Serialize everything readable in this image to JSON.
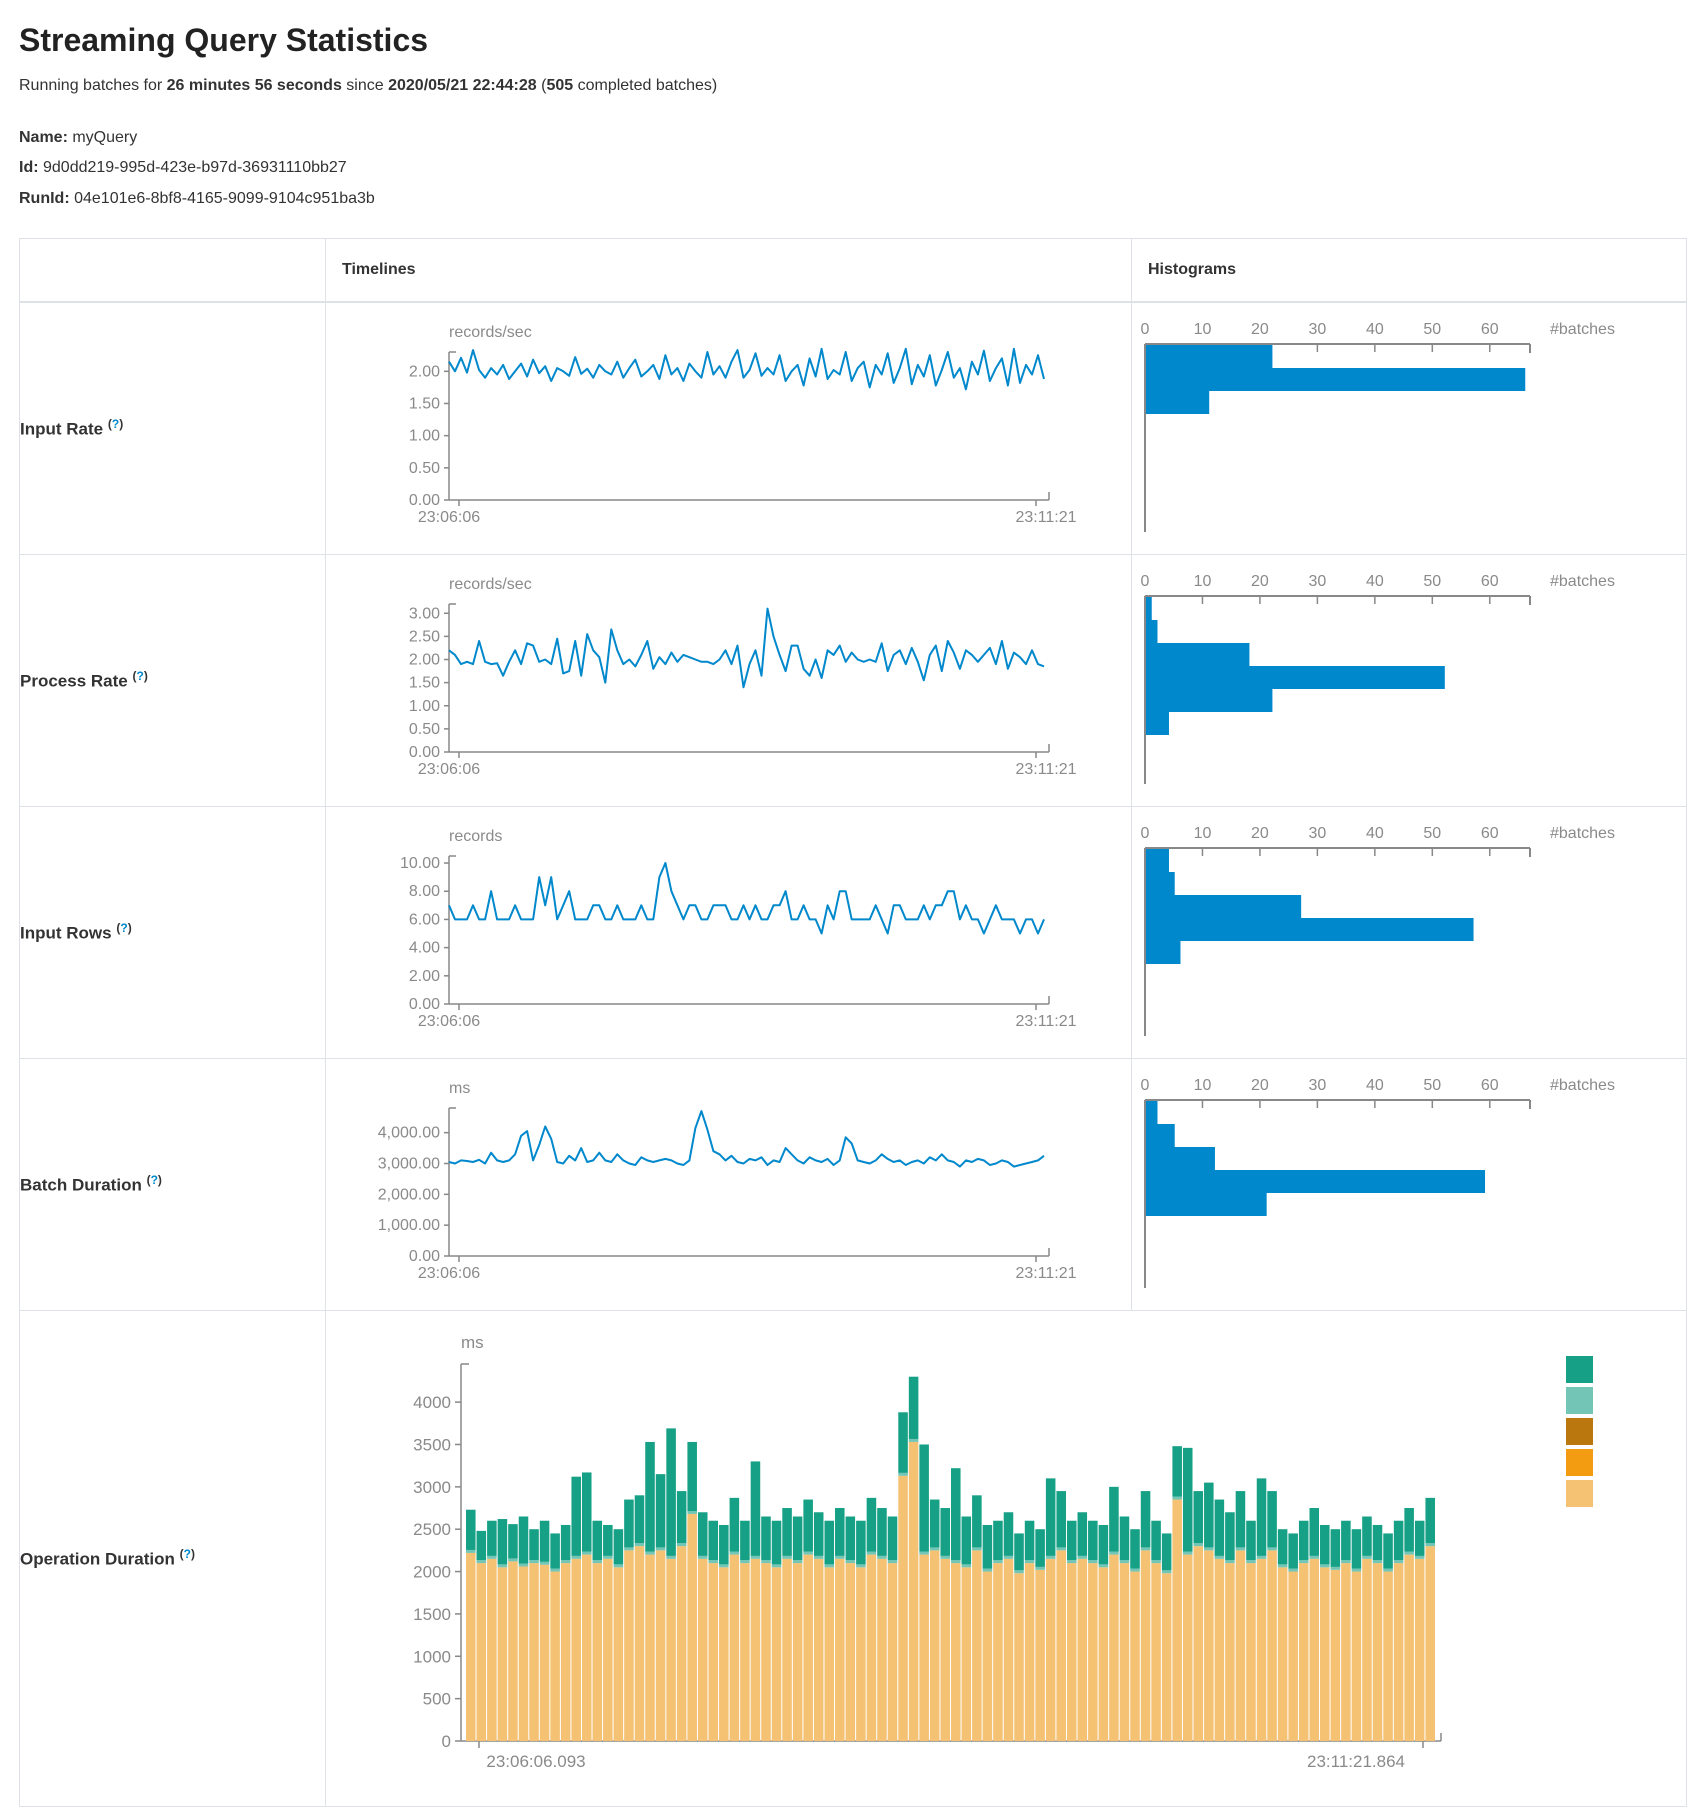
{
  "page": {
    "title": "Streaming Query Statistics",
    "subtitle": {
      "p1": "Running batches for ",
      "b1": "26 minutes 56 seconds",
      "p2": " since ",
      "b2": "2020/05/21 22:44:28",
      "p3": " (",
      "b3": "505",
      "p4": " completed batches)"
    },
    "meta": [
      {
        "label": "Name:",
        "value": " myQuery"
      },
      {
        "label": "Id:",
        "value": " 9d0dd219-995d-423e-b97d-36931110bb27"
      },
      {
        "label": "RunId:",
        "value": " 04e101e6-8bf8-4165-9099-9104c951ba3b"
      }
    ]
  },
  "table": {
    "timelines_header": "Timelines",
    "histograms_header": "Histograms"
  },
  "help_marker": {
    "open": "(",
    "q": "?",
    "close": ")"
  },
  "colors": {
    "line": "#0088cc",
    "histogram_bar": "#0088cc",
    "axis": "#888888",
    "axis_text": "#8a8a8a",
    "legend_green": "#16A085",
    "legend_light_teal": "#73C6B6",
    "legend_dark_orange": "#B9770E",
    "legend_orange": "#F39C12",
    "legend_light_orange": "#F5C274"
  },
  "chart_data": [
    {
      "row": "Input Rate",
      "type": "line",
      "unit": "records/sec",
      "x_start": "23:06:06",
      "x_end": "23:11:21",
      "yticks": [
        "2.00",
        "1.50",
        "1.00",
        "0.50",
        "0.00"
      ],
      "ymax": 2.3,
      "values": [
        2.15,
        2.0,
        2.21,
        1.98,
        2.33,
        2.02,
        1.9,
        2.05,
        1.95,
        2.1,
        1.88,
        2.0,
        2.12,
        1.92,
        2.18,
        1.97,
        2.08,
        1.85,
        2.05,
        2.0,
        1.93,
        2.22,
        1.96,
        2.04,
        1.9,
        2.1,
        2.0,
        1.95,
        2.15,
        1.9,
        2.05,
        2.18,
        1.92,
        2.0,
        2.1,
        1.88,
        2.25,
        1.95,
        2.05,
        1.85,
        2.12,
        2.0,
        1.9,
        2.3,
        1.95,
        2.08,
        1.9,
        2.15,
        2.33,
        1.9,
        2.02,
        2.28,
        1.93,
        2.05,
        1.95,
        2.25,
        1.85,
        2.0,
        2.1,
        1.78,
        2.2,
        1.92,
        2.35,
        1.88,
        2.02,
        1.95,
        2.3,
        1.85,
        2.05,
        2.15,
        1.75,
        2.1,
        1.95,
        2.28,
        1.82,
        2.05,
        2.35,
        1.8,
        2.1,
        1.92,
        2.25,
        1.78,
        2.02,
        2.3,
        1.9,
        2.05,
        1.72,
        2.15,
        1.95,
        2.32,
        1.85,
        2.05,
        2.2,
        1.78,
        2.35,
        1.82,
        2.1,
        1.95,
        2.25,
        1.88
      ]
    },
    {
      "row": "Input Rate",
      "type": "bar",
      "orientation": "horizontal",
      "xlabel": "#batches",
      "xticks": [
        "0",
        "10",
        "20",
        "30",
        "40",
        "50",
        "60"
      ],
      "xmax": 67,
      "bins": [
        22,
        66,
        11
      ]
    },
    {
      "row": "Process Rate",
      "type": "line",
      "unit": "records/sec",
      "x_start": "23:06:06",
      "x_end": "23:11:21",
      "yticks": [
        "3.00",
        "2.50",
        "2.00",
        "1.50",
        "1.00",
        "0.50",
        "0.00"
      ],
      "ymax": 3.2,
      "values": [
        2.2,
        2.1,
        1.9,
        1.95,
        1.9,
        2.4,
        1.95,
        1.9,
        1.92,
        1.65,
        1.95,
        2.2,
        1.9,
        2.35,
        2.3,
        1.95,
        2.0,
        1.9,
        2.45,
        1.7,
        1.75,
        2.4,
        1.65,
        2.55,
        2.2,
        2.05,
        1.5,
        2.65,
        2.2,
        1.9,
        2.0,
        1.85,
        2.1,
        2.4,
        1.8,
        2.05,
        1.9,
        2.15,
        1.95,
        2.1,
        2.05,
        2.0,
        1.95,
        1.95,
        1.9,
        2.0,
        2.2,
        1.9,
        2.3,
        1.4,
        1.9,
        2.2,
        1.65,
        3.1,
        2.5,
        2.1,
        1.75,
        2.3,
        2.3,
        1.8,
        1.65,
        2.0,
        1.6,
        2.2,
        2.1,
        2.3,
        1.95,
        2.15,
        2.0,
        1.95,
        2.0,
        1.95,
        2.35,
        1.75,
        2.1,
        2.2,
        1.9,
        2.25,
        1.95,
        1.55,
        2.1,
        2.3,
        1.75,
        2.4,
        2.15,
        1.8,
        2.2,
        2.1,
        1.95,
        2.1,
        2.25,
        1.9,
        2.4,
        1.8,
        2.15,
        2.05,
        1.9,
        2.2,
        1.9,
        1.85
      ]
    },
    {
      "row": "Process Rate",
      "type": "bar",
      "orientation": "horizontal",
      "xlabel": "#batches",
      "xticks": [
        "0",
        "10",
        "20",
        "30",
        "40",
        "50",
        "60"
      ],
      "xmax": 67,
      "bins": [
        1,
        2,
        18,
        52,
        22,
        4
      ]
    },
    {
      "row": "Input Rows",
      "type": "line",
      "unit": "records",
      "x_start": "23:06:06",
      "x_end": "23:11:21",
      "yticks": [
        "10.00",
        "8.00",
        "6.00",
        "4.00",
        "2.00",
        "0.00"
      ],
      "ymax": 10.5,
      "values": [
        7,
        6,
        6,
        6,
        7,
        6,
        6,
        8,
        6,
        6,
        6,
        7,
        6,
        6,
        6,
        9,
        7,
        9,
        6,
        7,
        8,
        6,
        6,
        6,
        7,
        7,
        6,
        6,
        7,
        6,
        6,
        6,
        7,
        6,
        6,
        9,
        10,
        8,
        7,
        6,
        7,
        7,
        6,
        6,
        7,
        7,
        7,
        6,
        6,
        7,
        6,
        7,
        6,
        6,
        7,
        7,
        8,
        6,
        6,
        7,
        6,
        6,
        5,
        7,
        6,
        8,
        8,
        6,
        6,
        6,
        6,
        7,
        6,
        5,
        7,
        7,
        6,
        6,
        6,
        7,
        6,
        7,
        7,
        8,
        8,
        6,
        7,
        6,
        6,
        5,
        6,
        7,
        6,
        6,
        6,
        5,
        6,
        6,
        5,
        6
      ]
    },
    {
      "row": "Input Rows",
      "type": "bar",
      "orientation": "horizontal",
      "xlabel": "#batches",
      "xticks": [
        "0",
        "10",
        "20",
        "30",
        "40",
        "50",
        "60"
      ],
      "xmax": 67,
      "bins": [
        4,
        5,
        27,
        57,
        6
      ]
    },
    {
      "row": "Batch Duration",
      "type": "line",
      "unit": "ms",
      "x_start": "23:06:06",
      "x_end": "23:11:21",
      "yticks": [
        "4,000.00",
        "3,000.00",
        "2,000.00",
        "1,000.00",
        "0.00"
      ],
      "ymax": 4800,
      "values": [
        3050,
        3000,
        3100,
        3080,
        3050,
        3120,
        3000,
        3350,
        3100,
        3050,
        3100,
        3300,
        3900,
        4050,
        3100,
        3600,
        4200,
        3800,
        3050,
        3000,
        3250,
        3100,
        3500,
        3050,
        3100,
        3350,
        3100,
        3050,
        3300,
        3100,
        3000,
        2950,
        3200,
        3100,
        3050,
        3100,
        3150,
        3100,
        3000,
        2950,
        3100,
        4150,
        4700,
        4100,
        3400,
        3300,
        3100,
        3250,
        3050,
        3000,
        3150,
        3100,
        3200,
        2950,
        3100,
        3050,
        3500,
        3300,
        3100,
        3000,
        3200,
        3100,
        3050,
        3150,
        2950,
        3100,
        3850,
        3650,
        3100,
        3050,
        3000,
        3100,
        3300,
        3150,
        3050,
        3100,
        2950,
        3050,
        3100,
        3000,
        3200,
        3100,
        3300,
        3100,
        3050,
        2900,
        3100,
        3050,
        3150,
        3100,
        2950,
        3000,
        3100,
        3050,
        2900,
        2950,
        3000,
        3050,
        3100,
        3250
      ]
    },
    {
      "row": "Batch Duration",
      "type": "bar",
      "orientation": "horizontal",
      "xlabel": "#batches",
      "xticks": [
        "0",
        "10",
        "20",
        "30",
        "40",
        "50",
        "60"
      ],
      "xmax": 67,
      "bins": [
        2,
        5,
        12,
        59,
        21
      ]
    },
    {
      "row": "Operation Duration",
      "type": "stacked-bar",
      "unit": "ms",
      "x_start": "23:06:06.093",
      "x_end": "23:11:21.864",
      "yticks": [
        "4000",
        "3500",
        "3000",
        "2500",
        "2000",
        "1500",
        "1000",
        "500",
        "0"
      ],
      "ymax": 4450,
      "sliver_value": 35,
      "stack_colors": [
        "#F5C274",
        "#73C6B6",
        "#16A085"
      ],
      "legend_colors": [
        "#16A085",
        "#73C6B6",
        "#B9770E",
        "#F39C12",
        "#F5C274"
      ],
      "bars_base_total": [
        [
          2220,
          2730
        ],
        [
          2100,
          2480
        ],
        [
          2150,
          2600
        ],
        [
          2050,
          2620
        ],
        [
          2120,
          2560
        ],
        [
          2060,
          2650
        ],
        [
          2100,
          2500
        ],
        [
          2080,
          2600
        ],
        [
          2000,
          2450
        ],
        [
          2100,
          2550
        ],
        [
          2150,
          3120
        ],
        [
          2200,
          3170
        ],
        [
          2100,
          2600
        ],
        [
          2150,
          2550
        ],
        [
          2050,
          2500
        ],
        [
          2250,
          2850
        ],
        [
          2300,
          2900
        ],
        [
          2200,
          3530
        ],
        [
          2250,
          3150
        ],
        [
          2150,
          3690
        ],
        [
          2300,
          2950
        ],
        [
          2680,
          3530
        ],
        [
          2150,
          2700
        ],
        [
          2100,
          2600
        ],
        [
          2050,
          2550
        ],
        [
          2200,
          2870
        ],
        [
          2100,
          2600
        ],
        [
          2150,
          3300
        ],
        [
          2100,
          2650
        ],
        [
          2050,
          2600
        ],
        [
          2150,
          2750
        ],
        [
          2100,
          2650
        ],
        [
          2200,
          2850
        ],
        [
          2150,
          2700
        ],
        [
          2050,
          2600
        ],
        [
          2150,
          2750
        ],
        [
          2100,
          2650
        ],
        [
          2050,
          2600
        ],
        [
          2200,
          2870
        ],
        [
          2150,
          2750
        ],
        [
          2100,
          2650
        ],
        [
          3130,
          3880
        ],
        [
          3530,
          4300
        ],
        [
          2200,
          3500
        ],
        [
          2250,
          2850
        ],
        [
          2150,
          2750
        ],
        [
          2100,
          3220
        ],
        [
          2050,
          2650
        ],
        [
          2250,
          2900
        ],
        [
          2000,
          2550
        ],
        [
          2100,
          2600
        ],
        [
          2150,
          2700
        ],
        [
          1980,
          2450
        ],
        [
          2100,
          2600
        ],
        [
          2020,
          2500
        ],
        [
          2150,
          3100
        ],
        [
          2250,
          2950
        ],
        [
          2100,
          2600
        ],
        [
          2150,
          2700
        ],
        [
          2100,
          2600
        ],
        [
          2050,
          2550
        ],
        [
          2200,
          3000
        ],
        [
          2100,
          2650
        ],
        [
          2000,
          2500
        ],
        [
          2250,
          2950
        ],
        [
          2100,
          2600
        ],
        [
          1980,
          2450
        ],
        [
          2850,
          3480
        ],
        [
          2200,
          3460
        ],
        [
          2300,
          2950
        ],
        [
          2250,
          3050
        ],
        [
          2150,
          2850
        ],
        [
          2100,
          2700
        ],
        [
          2250,
          2950
        ],
        [
          2100,
          2600
        ],
        [
          2150,
          3100
        ],
        [
          2250,
          2950
        ],
        [
          2050,
          2500
        ],
        [
          2000,
          2450
        ],
        [
          2100,
          2600
        ],
        [
          2150,
          2750
        ],
        [
          2050,
          2550
        ],
        [
          2020,
          2500
        ],
        [
          2100,
          2600
        ],
        [
          2000,
          2500
        ],
        [
          2150,
          2650
        ],
        [
          2100,
          2550
        ],
        [
          2000,
          2450
        ],
        [
          2100,
          2600
        ],
        [
          2200,
          2750
        ],
        [
          2150,
          2600
        ],
        [
          2300,
          2870
        ]
      ]
    }
  ]
}
